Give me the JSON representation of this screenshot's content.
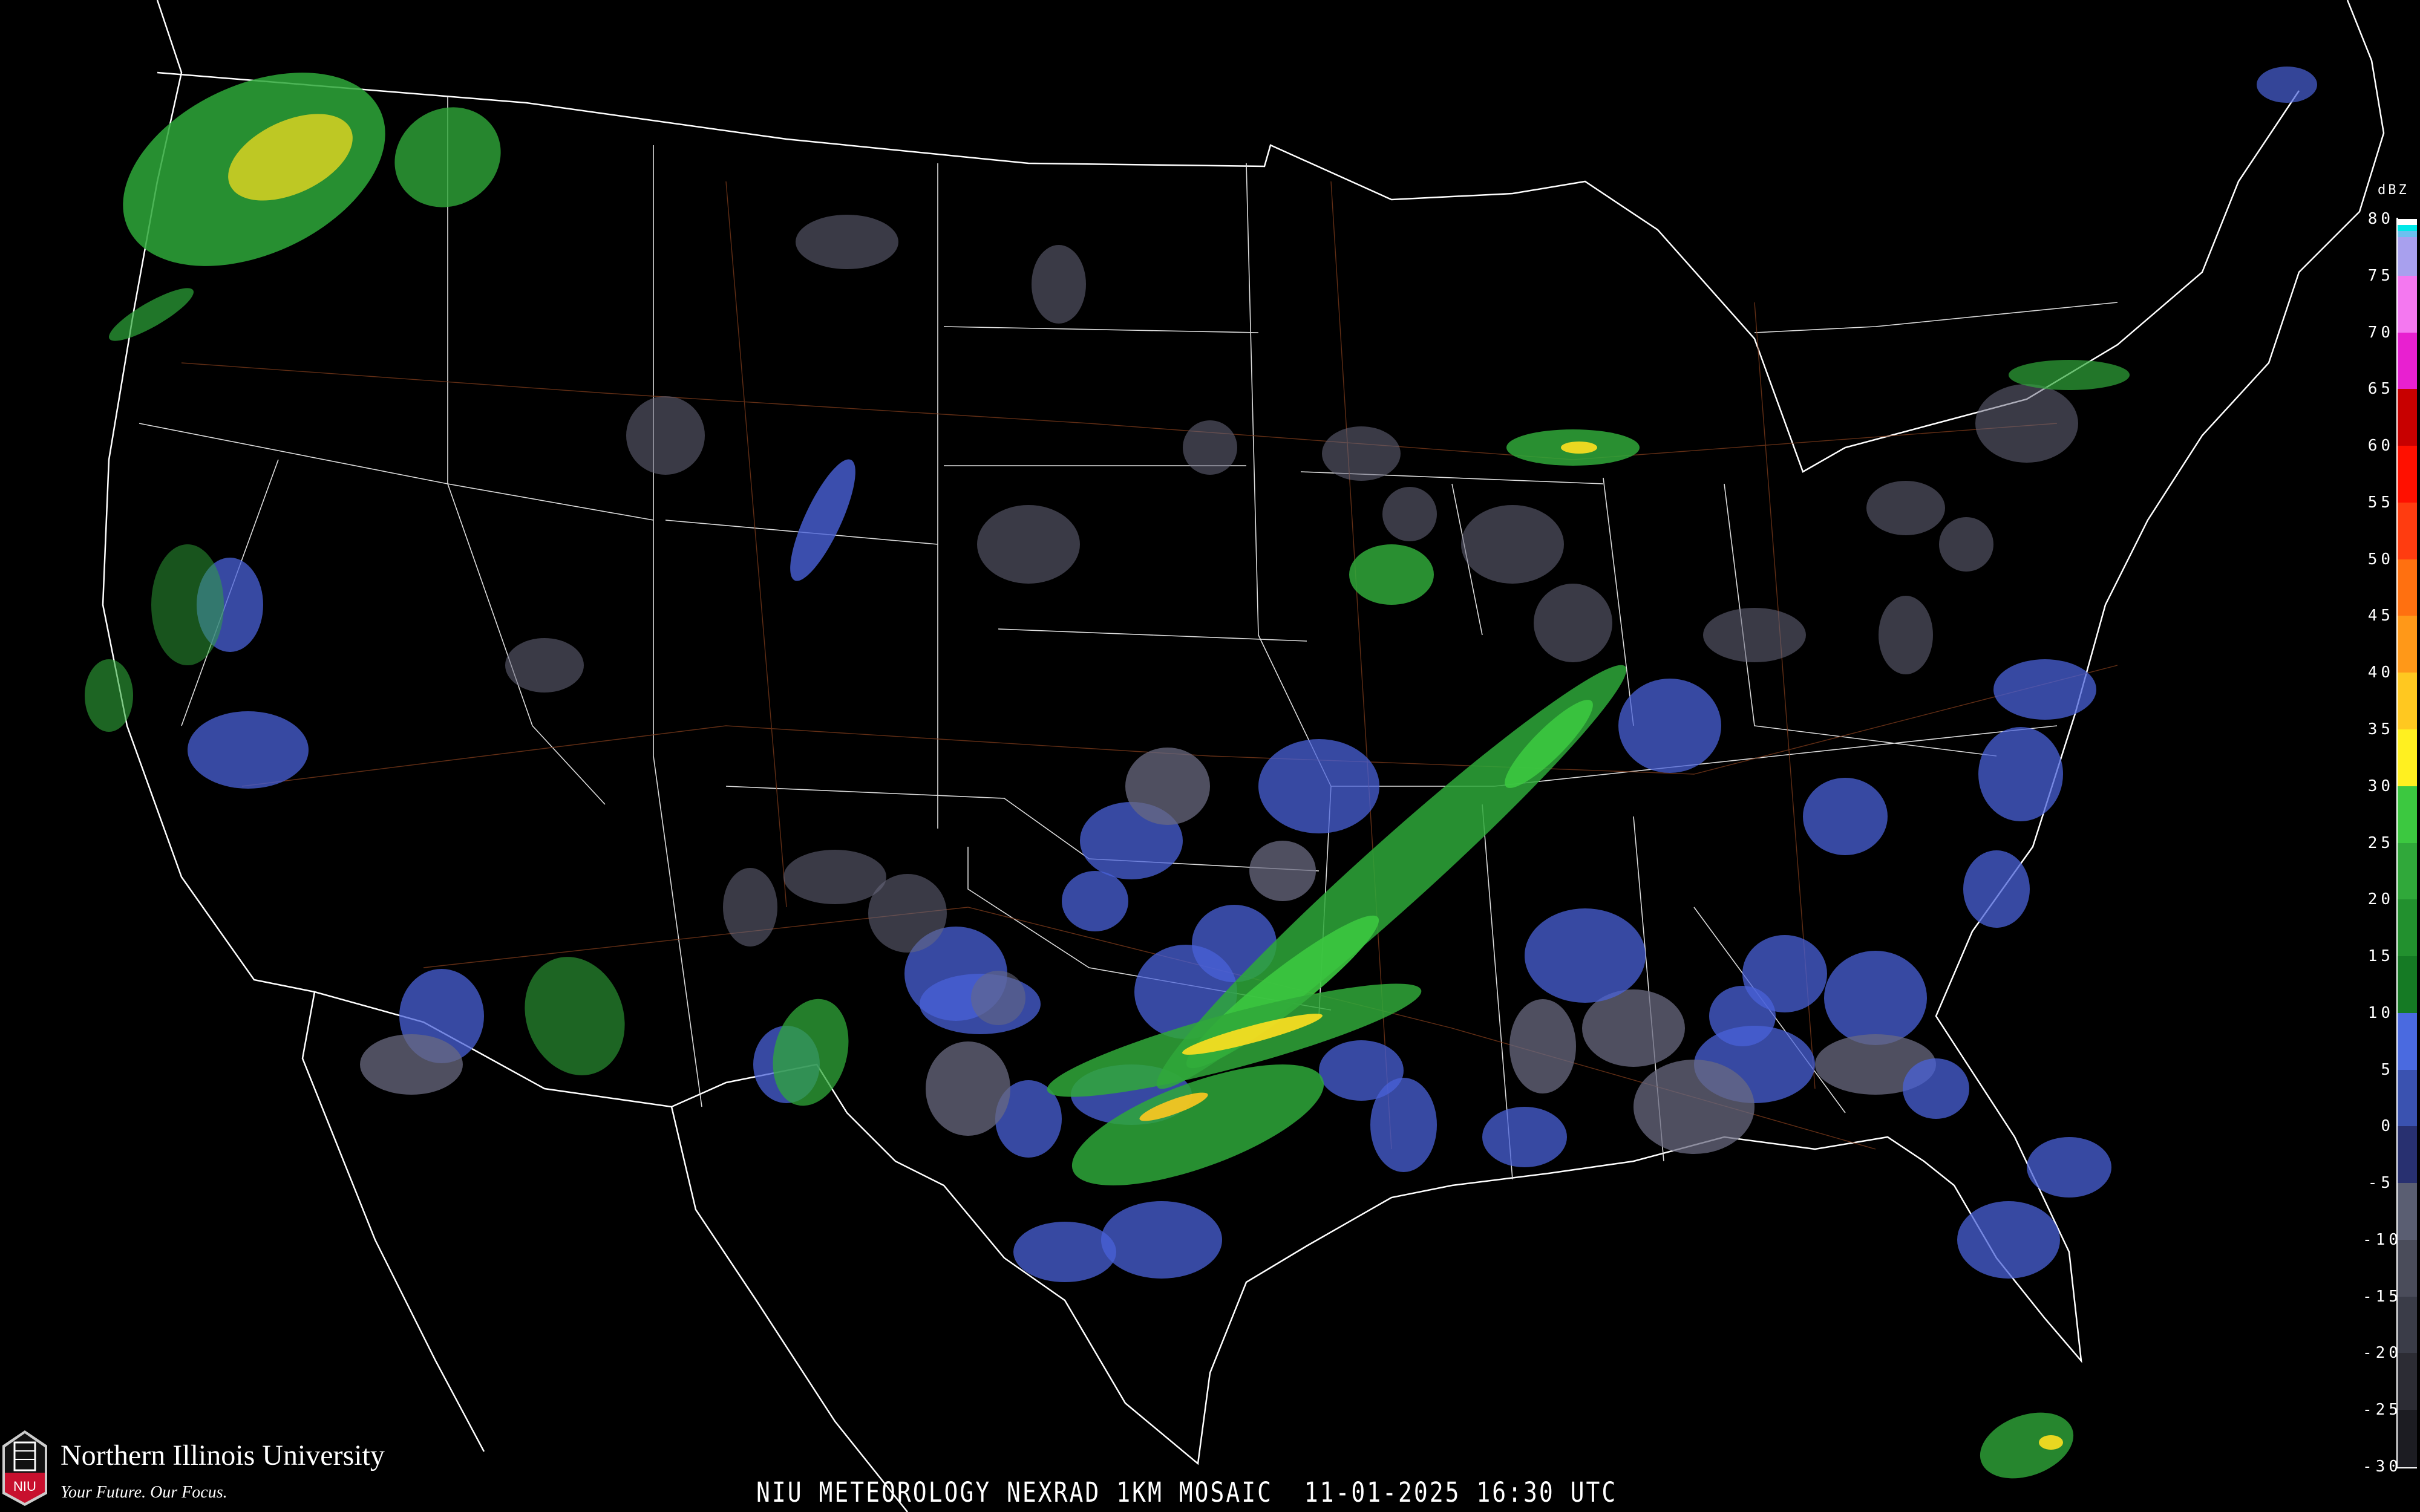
{
  "map": {
    "title": "NIU METEOROLOGY NEXRAD 1KM MOSAIC  11-01-2025 16:30 UTC",
    "product": "NEXRAD 1KM MOSAIC",
    "date": "11-01-2025",
    "time": "16:30 UTC"
  },
  "branding": {
    "university": "Northern Illinois University",
    "tagline": "Your Future. Our Focus.",
    "shield_text": "NIU",
    "brand_color": "#c8102e"
  },
  "legend": {
    "unit": "dBZ",
    "ticks": [
      80,
      75,
      70,
      65,
      60,
      55,
      50,
      45,
      40,
      35,
      30,
      25,
      20,
      15,
      10,
      5,
      0,
      -5,
      -10,
      -15,
      -20,
      -25,
      -30
    ],
    "bands": [
      {
        "min": 75,
        "max": 80,
        "color": "#a8a0ee"
      },
      {
        "min": 70,
        "max": 75,
        "color": "#f478f0"
      },
      {
        "min": 65,
        "max": 70,
        "color": "#e820d0"
      },
      {
        "min": 60,
        "max": 65,
        "color": "#c80000"
      },
      {
        "min": 55,
        "max": 60,
        "color": "#ff1000"
      },
      {
        "min": 50,
        "max": 55,
        "color": "#ff3c10"
      },
      {
        "min": 45,
        "max": 50,
        "color": "#ff7010"
      },
      {
        "min": 40,
        "max": 45,
        "color": "#ff9818"
      },
      {
        "min": 35,
        "max": 40,
        "color": "#ffc820"
      },
      {
        "min": 30,
        "max": 35,
        "color": "#fff020"
      },
      {
        "min": 25,
        "max": 30,
        "color": "#3cc840"
      },
      {
        "min": 20,
        "max": 25,
        "color": "#30a83a"
      },
      {
        "min": 15,
        "max": 20,
        "color": "#22902e"
      },
      {
        "min": 10,
        "max": 15,
        "color": "#157a24"
      },
      {
        "min": 5,
        "max": 10,
        "color": "#4a6ae0"
      },
      {
        "min": 0,
        "max": 5,
        "color": "#3a52b0"
      },
      {
        "min": -5,
        "max": 0,
        "color": "#283070"
      },
      {
        "min": -10,
        "max": -5,
        "color": "#5a5e72"
      },
      {
        "min": -15,
        "max": -10,
        "color": "#4a4c5a"
      },
      {
        "min": -20,
        "max": -15,
        "color": "#3a3c48"
      },
      {
        "min": -25,
        "max": -20,
        "color": "#2c2c34"
      },
      {
        "min": -30,
        "max": -25,
        "color": "#1c1c22"
      }
    ],
    "top_caps": [
      "#ffffff",
      "#00e8e8",
      "#6cc0f0"
    ]
  }
}
